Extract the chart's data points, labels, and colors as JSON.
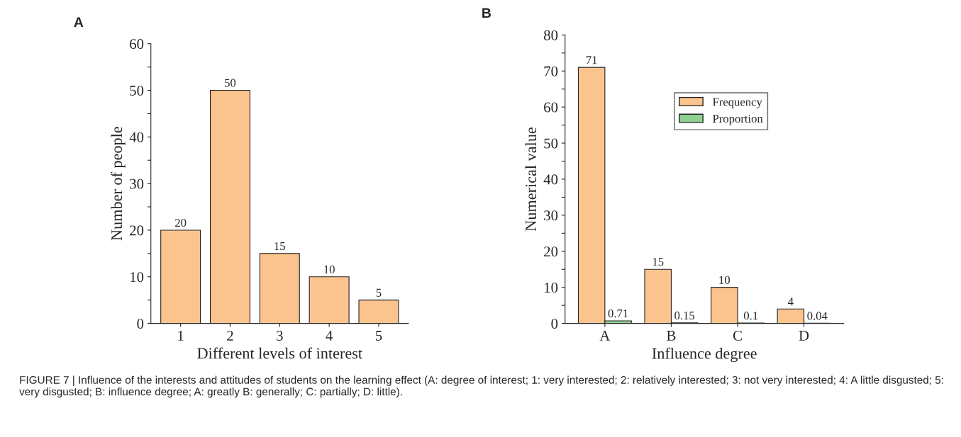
{
  "chart_data": [
    {
      "type": "bar",
      "title": "A",
      "xlabel": "Different levels of interest",
      "ylabel": "Number of people",
      "categories": [
        "1",
        "2",
        "3",
        "4",
        "5"
      ],
      "series": [
        {
          "color": "#fbc48f",
          "values": [
            20,
            50,
            15,
            10,
            5
          ]
        }
      ],
      "ylim": [
        0,
        60
      ],
      "yticks": [
        0,
        {
          "value": 5,
          "label": null
        },
        10,
        {
          "value": 15,
          "label": null
        },
        20,
        {
          "value": 25,
          "label": null
        },
        30,
        {
          "value": 35,
          "label": null
        },
        40,
        {
          "value": 45,
          "label": null
        },
        50,
        {
          "value": 55,
          "label": null
        },
        60
      ],
      "data_labels": true,
      "grid": false,
      "legend": false
    },
    {
      "type": "bar",
      "title": "B",
      "xlabel": "Influence degree",
      "ylabel": "Numerical value",
      "categories": [
        "A",
        "B",
        "C",
        "D"
      ],
      "series": [
        {
          "name": "Frequency",
          "color": "#fbc48f",
          "values": [
            71,
            15,
            10,
            4
          ]
        },
        {
          "name": "Proportion",
          "color": "#90d090",
          "values": [
            0.71,
            0.15,
            0.1,
            0.04
          ]
        }
      ],
      "ylim": [
        0,
        80
      ],
      "yticks": [
        0,
        {
          "value": 5,
          "label": null
        },
        10,
        {
          "value": 15,
          "label": null
        },
        20,
        {
          "value": 25,
          "label": null
        },
        30,
        {
          "value": 35,
          "label": null
        },
        40,
        {
          "value": 45,
          "label": null
        },
        50,
        {
          "value": 55,
          "label": null
        },
        60,
        {
          "value": 65,
          "label": null
        },
        70,
        {
          "value": 75,
          "label": null
        },
        80
      ],
      "data_labels": true,
      "grid": false,
      "legend": "top",
      "annotations": [
        "FIGURE 7 | Influence of the interests and attitudes of students on the learning effect (A: degree of interest; 1: very interested; 2: relatively interested; 3: not very interested; 4: A little disgusted; 5: very disgusted; B: influence degree; A: greatly B: generally; C: partially; D: little)."
      ]
    }
  ]
}
